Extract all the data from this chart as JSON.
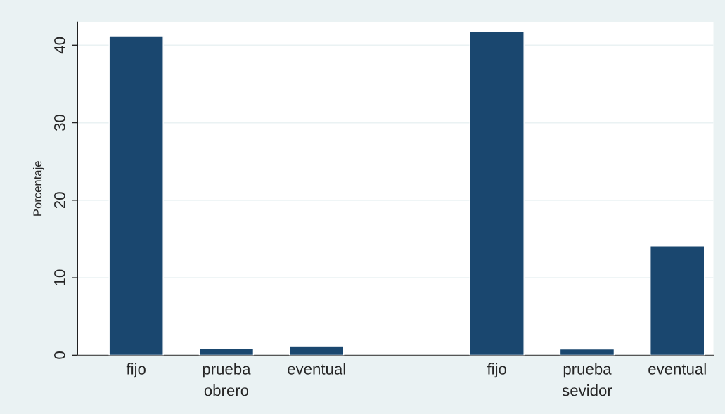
{
  "chart_data": {
    "type": "bar",
    "ylabel": "Porcentaje",
    "categories": [
      "fijo",
      "prueba",
      "eventual",
      null,
      "fijo",
      "prueba",
      "eventual"
    ],
    "values": [
      41.2,
      0.9,
      1.2,
      null,
      41.8,
      0.8,
      14.1
    ],
    "color": "#1a476f",
    "ylim": [
      0,
      43
    ],
    "yticks": [
      0,
      10,
      20,
      30,
      40
    ],
    "grid": "y",
    "annotations": [
      "obrero",
      "sevidor"
    ]
  }
}
